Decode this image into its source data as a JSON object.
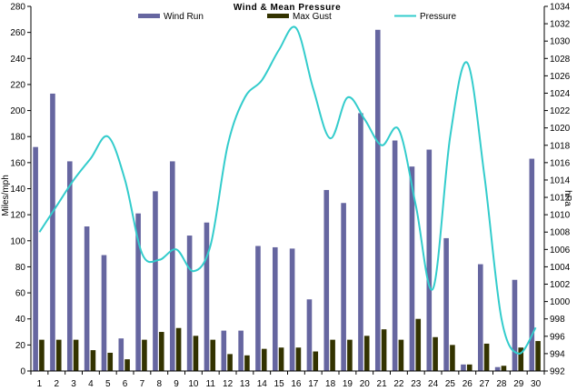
{
  "chart_data": {
    "type": "bar",
    "title": "Wind & Mean Pressure",
    "ylabel": "Miles/mph",
    "y2label": "hPa",
    "ylim": [
      0,
      280
    ],
    "y2lim": [
      992,
      1034
    ],
    "yticks": [
      0,
      20,
      40,
      60,
      80,
      100,
      120,
      140,
      160,
      180,
      200,
      220,
      240,
      260,
      280
    ],
    "y2ticks": [
      992,
      994,
      996,
      998,
      1000,
      1002,
      1004,
      1006,
      1008,
      1010,
      1012,
      1014,
      1016,
      1018,
      1020,
      1022,
      1024,
      1026,
      1028,
      1030,
      1032,
      1034
    ],
    "categories": [
      "1",
      "2",
      "3",
      "4",
      "5",
      "6",
      "7",
      "8",
      "9",
      "10",
      "11",
      "12",
      "13",
      "14",
      "15",
      "16",
      "17",
      "18",
      "19",
      "20",
      "21",
      "22",
      "23",
      "24",
      "25",
      "26",
      "27",
      "28",
      "29",
      "30"
    ],
    "grid": false,
    "legend_position": "top-center",
    "series": [
      {
        "name": "Wind Run",
        "type": "bar",
        "color": "#6666a0",
        "values": [
          172,
          213,
          161,
          111,
          89,
          25,
          121,
          138,
          161,
          104,
          114,
          31,
          31,
          96,
          95,
          94,
          55,
          139,
          129,
          198,
          262,
          177,
          157,
          170,
          102,
          5,
          82,
          3,
          70,
          163
        ]
      },
      {
        "name": "Max Gust",
        "type": "bar",
        "color": "#333300",
        "values": [
          24,
          24,
          24,
          16,
          14,
          9,
          24,
          30,
          33,
          27,
          24,
          13,
          12,
          17,
          18,
          18,
          15,
          24,
          24,
          27,
          32,
          24,
          40,
          26,
          20,
          5,
          21,
          4,
          18,
          23
        ]
      },
      {
        "name": "Pressure",
        "type": "line",
        "axis": "right",
        "color": "#33cccc",
        "values": [
          1008,
          1011,
          1014,
          1016.5,
          1019,
          1014,
          1005.5,
          1004.8,
          1006,
          1003.5,
          1006.5,
          1018,
          1023.5,
          1025.5,
          1029,
          1031.5,
          1024.5,
          1018.8,
          1023.5,
          1021,
          1018,
          1019.8,
          1011,
          1001.5,
          1019,
          1027.5,
          1014.5,
          998,
          994,
          997
        ]
      }
    ]
  }
}
